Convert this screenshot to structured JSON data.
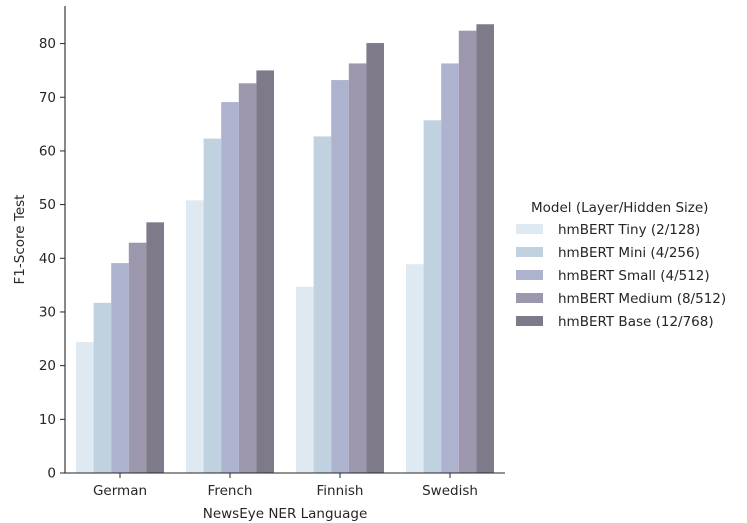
{
  "chart_data": {
    "type": "bar",
    "xlabel": "NewsEye NER Language",
    "ylabel": "F1-Score Test",
    "categories": [
      "German",
      "French",
      "Finnish",
      "Swedish"
    ],
    "ylim": [
      0,
      87
    ],
    "yticks": [
      0,
      10,
      20,
      30,
      40,
      50,
      60,
      70,
      80
    ],
    "grid": false,
    "legend": {
      "title": "Model (Layer/Hidden Size)",
      "placement": "right"
    },
    "series": [
      {
        "name": "hmBERT Tiny (2/128)",
        "color": "#dfe9f1",
        "values": [
          24.4,
          50.8,
          34.7,
          38.9
        ]
      },
      {
        "name": "hmBERT Mini (4/256)",
        "color": "#c0d1df",
        "values": [
          31.7,
          62.3,
          62.7,
          65.7
        ]
      },
      {
        "name": "hmBERT Small (4/512)",
        "color": "#adb2cf",
        "values": [
          39.1,
          69.1,
          73.2,
          76.3
        ]
      },
      {
        "name": "hmBERT Medium (8/512)",
        "color": "#9c97ad",
        "values": [
          42.9,
          72.6,
          76.3,
          82.4
        ]
      },
      {
        "name": "hmBERT Base (12/768)",
        "color": "#7e7a8a",
        "values": [
          46.7,
          75.0,
          80.1,
          83.6
        ]
      }
    ]
  }
}
